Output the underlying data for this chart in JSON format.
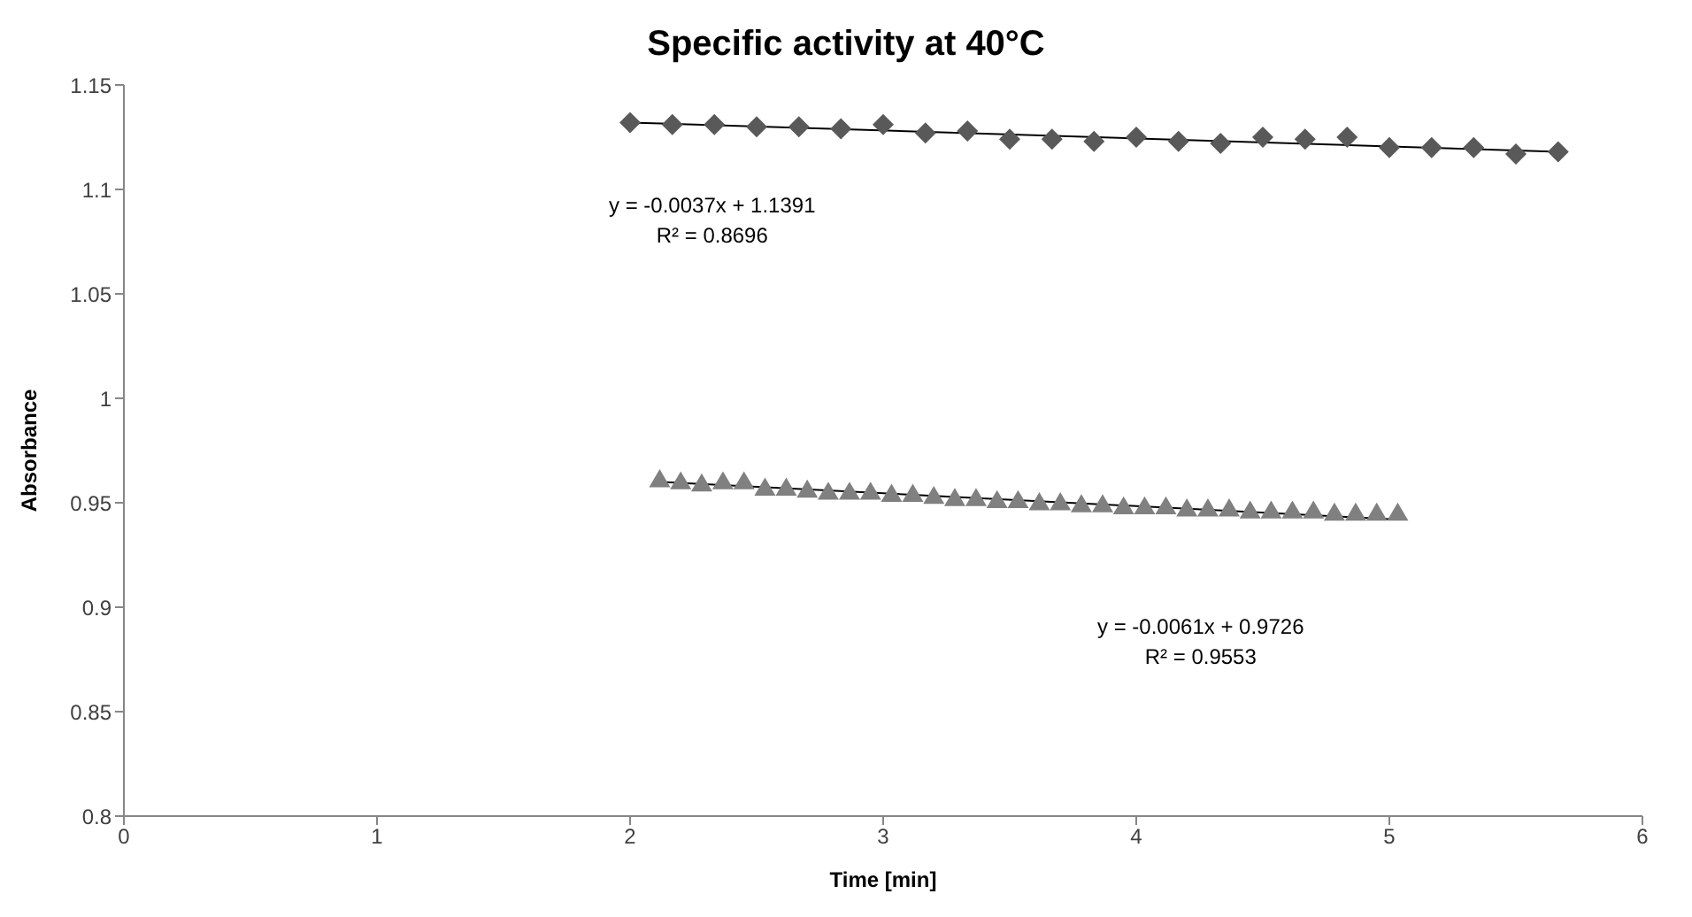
{
  "chart_data": {
    "type": "scatter",
    "title": "Specific activity at 40°C",
    "xlabel": "Time [min]",
    "ylabel": "Absorbance",
    "xlim": [
      0,
      6
    ],
    "xticks": [
      0,
      1,
      2,
      3,
      4,
      5,
      6
    ],
    "ylim": [
      0.8,
      1.15
    ],
    "yticks": [
      0.8,
      0.85,
      0.9,
      0.95,
      1,
      1.05,
      1.1,
      1.15
    ],
    "grid": false,
    "series": [
      {
        "marker": "diamond",
        "color": "#595959",
        "x": [
          2,
          2.167,
          2.333,
          2.5,
          2.667,
          2.833,
          3,
          3.167,
          3.333,
          3.5,
          3.667,
          3.833,
          4,
          4.167,
          4.333,
          4.5,
          4.667,
          4.833,
          5,
          5.167,
          5.333,
          5.5,
          5.667
        ],
        "values": [
          1.132,
          1.131,
          1.131,
          1.13,
          1.13,
          1.129,
          1.131,
          1.127,
          1.128,
          1.124,
          1.124,
          1.123,
          1.125,
          1.123,
          1.122,
          1.125,
          1.124,
          1.125,
          1.12,
          1.12,
          1.12,
          1.117,
          1.118
        ]
      },
      {
        "marker": "triangle",
        "color": "#808080",
        "x": [
          2.117,
          2.2,
          2.283,
          2.367,
          2.45,
          2.533,
          2.617,
          2.7,
          2.783,
          2.867,
          2.95,
          3.033,
          3.117,
          3.2,
          3.283,
          3.367,
          3.45,
          3.533,
          3.617,
          3.7,
          3.783,
          3.867,
          3.95,
          4.033,
          4.117,
          4.2,
          4.283,
          4.367,
          4.45,
          4.533,
          4.617,
          4.7,
          4.783,
          4.867,
          4.95,
          5.033
        ],
        "values": [
          0.961,
          0.96,
          0.959,
          0.96,
          0.96,
          0.957,
          0.957,
          0.956,
          0.955,
          0.955,
          0.955,
          0.954,
          0.954,
          0.953,
          0.952,
          0.952,
          0.951,
          0.951,
          0.95,
          0.95,
          0.949,
          0.949,
          0.948,
          0.948,
          0.948,
          0.947,
          0.947,
          0.947,
          0.946,
          0.946,
          0.946,
          0.946,
          0.945,
          0.945,
          0.945,
          0.945
        ]
      },
      {
        "type": "line",
        "marker": "none",
        "color": "#000000",
        "x": [
          2,
          5.667
        ],
        "values": [
          1.132,
          1.118
        ]
      },
      {
        "type": "line",
        "marker": "none",
        "color": "#000000",
        "x": [
          2.117,
          5.033
        ],
        "values": [
          0.96,
          0.942
        ]
      }
    ],
    "annotations": [
      "y = -0.0037x + 1.1391\nR² = 0.8696",
      "y = -0.0061x + 0.9726\nR² = 0.9553"
    ]
  }
}
